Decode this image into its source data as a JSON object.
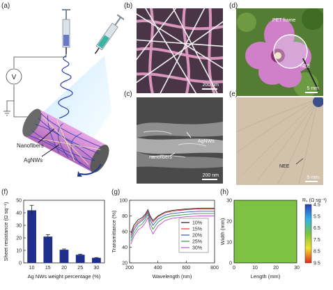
{
  "panel_labels": {
    "a": "(a)",
    "b": "(b)",
    "c": "(c)",
    "d": "(d)",
    "e": "(e)",
    "f": "(f)",
    "g": "(g)",
    "h": "(h)"
  },
  "a": {
    "voltmeter": "V",
    "nanofibers_label": "Nanofibers",
    "agnws_label": "AgNWs"
  },
  "b": {
    "scalebar": "200 nm"
  },
  "c": {
    "scalebar": "200 nm",
    "agnws_label": "AgNWs",
    "nanofibers_label": "nanofibers"
  },
  "d": {
    "pet_label": "PET frame",
    "nee_label": "NEE",
    "scalebar": "5 mm"
  },
  "e": {
    "nee_label": "NEE",
    "scalebar": "5 mm"
  },
  "colors": {
    "bar": "#1f2f8c",
    "flower": "#d07fc9",
    "leaves": "#4f7b2d",
    "map_green": "#7dc242",
    "skin": "#d8cab7"
  },
  "chart_data": [
    {
      "type": "bar",
      "categories": [
        "10",
        "15",
        "20",
        "25",
        "30"
      ],
      "values": [
        42,
        21,
        10.5,
        6.5,
        4
      ],
      "errors": [
        4,
        1.5,
        0.6,
        0.4,
        0.3
      ],
      "xlabel": "Ag NWs weight percentage (%)",
      "ylabel": "Sheet resistance (Ω sq⁻¹)",
      "ylim": [
        0,
        50
      ],
      "yticks": [
        0,
        10,
        20,
        30,
        40,
        50
      ]
    },
    {
      "type": "line",
      "xlabel": "Wavelength (nm)",
      "ylabel": "Transmittance (%)",
      "xlim": [
        200,
        800
      ],
      "ylim": [
        20,
        100
      ],
      "xticks": [
        200,
        400,
        600,
        800
      ],
      "yticks": [
        20,
        40,
        60,
        80,
        100
      ],
      "legend_position": "right",
      "series": [
        {
          "name": "10%",
          "color": "#1a1a1a",
          "x": [
            210,
            230,
            260,
            290,
            310,
            330,
            345,
            365,
            400,
            450,
            500,
            600,
            700,
            800
          ],
          "y": [
            58,
            68,
            75,
            78,
            82,
            88,
            80,
            74,
            80,
            85,
            87,
            89,
            90,
            90
          ]
        },
        {
          "name": "15%",
          "color": "#e23b3b",
          "x": [
            210,
            230,
            260,
            290,
            310,
            330,
            345,
            365,
            400,
            450,
            500,
            600,
            700,
            800
          ],
          "y": [
            55,
            65,
            72,
            76,
            80,
            87,
            78,
            72,
            79,
            84,
            86,
            88,
            89,
            89
          ]
        },
        {
          "name": "20%",
          "color": "#2a55c9",
          "x": [
            210,
            230,
            260,
            290,
            310,
            330,
            345,
            365,
            400,
            450,
            500,
            600,
            700,
            800
          ],
          "y": [
            52,
            62,
            70,
            74,
            78,
            85,
            75,
            68,
            76,
            81,
            83,
            85,
            86,
            86
          ]
        },
        {
          "name": "25%",
          "color": "#2f9b3c",
          "x": [
            210,
            230,
            260,
            290,
            310,
            330,
            345,
            365,
            400,
            450,
            500,
            600,
            700,
            800
          ],
          "y": [
            48,
            58,
            66,
            70,
            75,
            82,
            70,
            63,
            72,
            78,
            80,
            82,
            83,
            83
          ]
        },
        {
          "name": "30%",
          "color": "#c14cc6",
          "x": [
            210,
            230,
            260,
            290,
            310,
            330,
            345,
            365,
            400,
            450,
            500,
            600,
            700,
            800
          ],
          "y": [
            44,
            54,
            62,
            66,
            71,
            78,
            65,
            57,
            67,
            74,
            77,
            79,
            80,
            80
          ]
        }
      ]
    },
    {
      "type": "heatmap",
      "xlabel": "Length (mm)",
      "ylabel": "Width (mm)",
      "xlim": [
        0,
        30
      ],
      "ylim": [
        0,
        30
      ],
      "xticks": [
        0,
        10,
        20,
        30
      ],
      "yticks": [
        0,
        10,
        20,
        30
      ],
      "colorbar_title": "Rₛ (Ω sq⁻¹)",
      "colorbar_ticks": [
        4.5,
        5.5,
        6.5,
        7.5,
        8.5,
        9.5
      ],
      "value": 6.8
    }
  ]
}
